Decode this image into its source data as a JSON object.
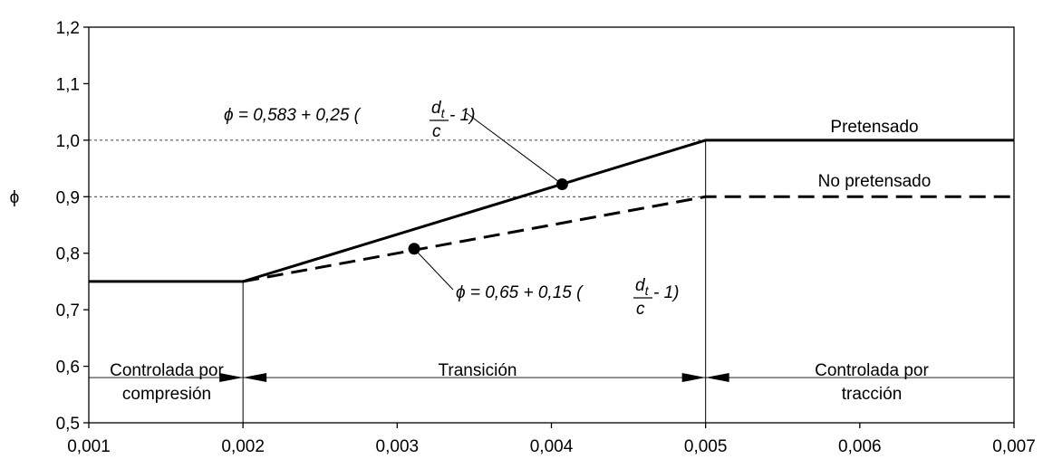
{
  "chart_data": {
    "type": "line",
    "title": "",
    "xlabel": "",
    "ylabel": "ϕ",
    "xlim": [
      0.001,
      0.007
    ],
    "ylim": [
      0.5,
      1.2
    ],
    "grid": false,
    "x_tick_labels": [
      "0,001",
      "0,002",
      "0,003",
      "0,004",
      "0,005",
      "0,006",
      "0,007"
    ],
    "y_tick_labels": [
      "0,5",
      "0,6",
      "0,7",
      "0,8",
      "0,9",
      "1,0",
      "1,1",
      "1,2"
    ],
    "x_ticks": [
      0.001,
      0.002,
      0.003,
      0.004,
      0.005,
      0.006,
      0.007
    ],
    "y_ticks": [
      0.5,
      0.6,
      0.7,
      0.8,
      0.9,
      1.0,
      1.1,
      1.2
    ],
    "reference_lines_y": [
      0.9,
      1.0
    ],
    "reference_lines_x": [
      0.002,
      0.005
    ],
    "series": [
      {
        "name": "Pretensado",
        "style": "solid",
        "color": "#000000",
        "x": [
          0.001,
          0.002,
          0.005,
          0.007
        ],
        "y": [
          0.75,
          0.75,
          1.0,
          1.0
        ]
      },
      {
        "name": "No pretensado",
        "style": "dashed",
        "color": "#000000",
        "x": [
          0.002,
          0.005,
          0.007
        ],
        "y": [
          0.75,
          0.9,
          0.9
        ]
      }
    ],
    "markers": [
      {
        "x": 0.00407,
        "y": 0.922
      },
      {
        "x": 0.00311,
        "y": 0.808
      }
    ],
    "annotations": {
      "eq_pre": {
        "prefix": "ϕ = 0,583 + 0,25 (",
        "num": "d",
        "num_sub": "t",
        "den": "c",
        "suffix": " - 1)"
      },
      "eq_nopre": {
        "prefix": "ϕ = 0,65 + 0,15 (",
        "num": "d",
        "num_sub": "t",
        "den": "c",
        "suffix": " - 1)"
      }
    },
    "zones": [
      {
        "lines": [
          "Controlada por",
          "compresión"
        ]
      },
      {
        "lines": [
          "Transición"
        ]
      },
      {
        "lines": [
          "Controlada por",
          "tracción"
        ]
      }
    ],
    "zone_line_y": 0.58
  }
}
